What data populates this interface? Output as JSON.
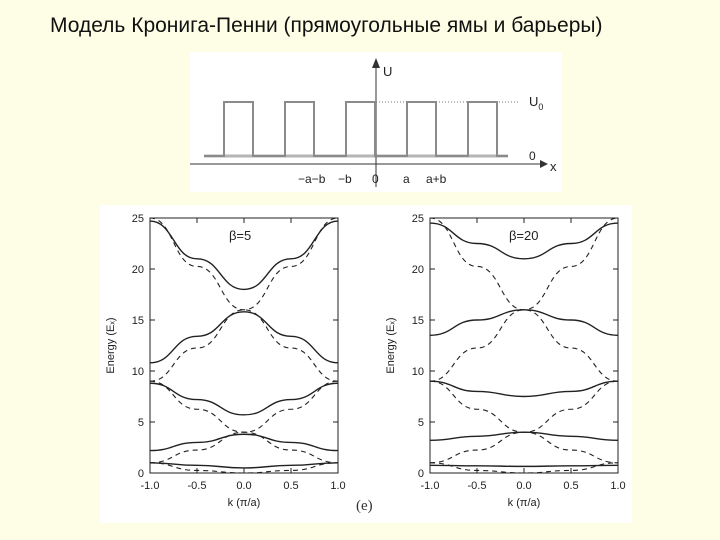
{
  "title": "Модель Кронига-Пенни (прямоугольные ямы и барьеры)",
  "potential": {
    "y_axis_label": "U",
    "level_label": "U",
    "level_subscript": "0",
    "zero_label": "0",
    "x_axis_label": "x",
    "x_tick_labels": [
      "−a−b",
      "−b",
      "0",
      "a",
      "a+b"
    ]
  },
  "figure_tag": "(e)",
  "chart_data": [
    {
      "type": "line",
      "title": "β=5",
      "xlabel": "k (π/a)",
      "ylabel": "Energy (Eₓ)",
      "xlim": [
        -1.0,
        1.0
      ],
      "ylim": [
        0,
        25
      ],
      "x_ticks": [
        "-1.0",
        "-0.5",
        "0.0",
        "0.5",
        "1.0"
      ],
      "y_ticks": [
        "0",
        "5",
        "10",
        "15",
        "20",
        "25"
      ],
      "series": [
        {
          "style": "solid",
          "x": [
            -1.0,
            -0.5,
            0.0,
            0.5,
            1.0
          ],
          "y": [
            1.0,
            0.75,
            0.5,
            0.75,
            1.0
          ]
        },
        {
          "style": "solid",
          "x": [
            -1.0,
            -0.5,
            0.0,
            0.5,
            1.0
          ],
          "y": [
            2.2,
            3.0,
            3.8,
            3.0,
            2.2
          ]
        },
        {
          "style": "solid",
          "x": [
            -1.0,
            -0.5,
            0.0,
            0.5,
            1.0
          ],
          "y": [
            8.8,
            7.2,
            5.7,
            7.2,
            8.8
          ]
        },
        {
          "style": "solid",
          "x": [
            -1.0,
            -0.5,
            0.0,
            0.5,
            1.0
          ],
          "y": [
            10.8,
            13.4,
            15.8,
            13.4,
            10.8
          ]
        },
        {
          "style": "solid",
          "x": [
            -1.0,
            -0.5,
            0.0,
            0.5,
            1.0
          ],
          "y": [
            24.7,
            21.0,
            18.0,
            21.0,
            24.7
          ]
        },
        {
          "style": "dashed",
          "x": [
            -1.0,
            -0.5,
            0.0,
            0.5,
            1.0
          ],
          "y": [
            1.0,
            0.25,
            0.0,
            0.25,
            1.0
          ]
        },
        {
          "style": "dashed",
          "x": [
            -1.0,
            -0.5,
            0.0,
            0.5,
            1.0
          ],
          "y": [
            1.0,
            2.25,
            4.0,
            2.25,
            1.0
          ]
        },
        {
          "style": "dashed",
          "x": [
            -1.0,
            -0.5,
            0.0,
            0.5,
            1.0
          ],
          "y": [
            9.0,
            6.25,
            4.0,
            6.25,
            9.0
          ]
        },
        {
          "style": "dashed",
          "x": [
            -1.0,
            -0.5,
            0.0,
            0.5,
            1.0
          ],
          "y": [
            9.0,
            12.25,
            16.0,
            12.25,
            9.0
          ]
        },
        {
          "style": "dashed",
          "x": [
            -1.0,
            -0.5,
            0.0,
            0.5,
            1.0
          ],
          "y": [
            25.0,
            20.25,
            16.0,
            20.25,
            25.0
          ]
        }
      ]
    },
    {
      "type": "line",
      "title": "β=20",
      "xlabel": "k (π/a)",
      "ylabel": "Energy (Eₓ)",
      "xlim": [
        -1.0,
        1.0
      ],
      "ylim": [
        0,
        25
      ],
      "x_ticks": [
        "-1.0",
        "-0.5",
        "0.0",
        "0.5",
        "1.0"
      ],
      "y_ticks": [
        "0",
        "5",
        "10",
        "15",
        "20",
        "25"
      ],
      "series": [
        {
          "style": "solid",
          "x": [
            -1.0,
            -0.5,
            0.0,
            0.5,
            1.0
          ],
          "y": [
            0.75,
            0.7,
            0.65,
            0.7,
            0.75
          ]
        },
        {
          "style": "solid",
          "x": [
            -1.0,
            -0.5,
            0.0,
            0.5,
            1.0
          ],
          "y": [
            3.2,
            3.6,
            4.0,
            3.6,
            3.2
          ]
        },
        {
          "style": "solid",
          "x": [
            -1.0,
            -0.5,
            0.0,
            0.5,
            1.0
          ],
          "y": [
            9.0,
            8.0,
            7.5,
            8.0,
            9.0
          ]
        },
        {
          "style": "solid",
          "x": [
            -1.0,
            -0.5,
            0.0,
            0.5,
            1.0
          ],
          "y": [
            13.5,
            15.0,
            16.0,
            15.0,
            13.5
          ]
        },
        {
          "style": "solid",
          "x": [
            -1.0,
            -0.5,
            0.0,
            0.5,
            1.0
          ],
          "y": [
            24.5,
            22.5,
            21.0,
            22.5,
            24.5
          ]
        },
        {
          "style": "dashed",
          "x": [
            -1.0,
            -0.5,
            0.0,
            0.5,
            1.0
          ],
          "y": [
            1.0,
            0.25,
            0.0,
            0.25,
            1.0
          ]
        },
        {
          "style": "dashed",
          "x": [
            -1.0,
            -0.5,
            0.0,
            0.5,
            1.0
          ],
          "y": [
            1.0,
            2.25,
            4.0,
            2.25,
            1.0
          ]
        },
        {
          "style": "dashed",
          "x": [
            -1.0,
            -0.5,
            0.0,
            0.5,
            1.0
          ],
          "y": [
            9.0,
            6.25,
            4.0,
            6.25,
            9.0
          ]
        },
        {
          "style": "dashed",
          "x": [
            -1.0,
            -0.5,
            0.0,
            0.5,
            1.0
          ],
          "y": [
            9.0,
            12.25,
            16.0,
            12.25,
            9.0
          ]
        },
        {
          "style": "dashed",
          "x": [
            -1.0,
            -0.5,
            0.0,
            0.5,
            1.0
          ],
          "y": [
            25.0,
            20.25,
            16.0,
            20.25,
            25.0
          ]
        }
      ]
    }
  ]
}
